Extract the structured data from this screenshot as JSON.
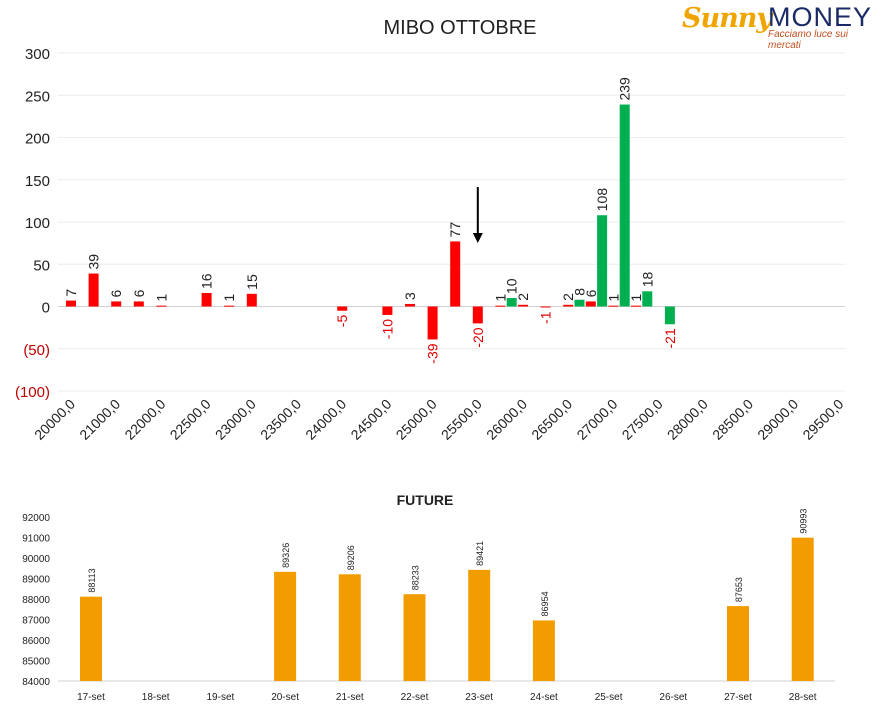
{
  "logo": {
    "word1": "Sunny",
    "word2": "MONEY",
    "tagline": "Facciamo luce sui mercati"
  },
  "chart_data": [
    {
      "type": "bar",
      "title": "MIBO OTTOBRE",
      "ylim": [
        -100,
        300
      ],
      "y_ticks": [
        {
          "value": 300,
          "label": "300"
        },
        {
          "value": 250,
          "label": "250"
        },
        {
          "value": 200,
          "label": "200"
        },
        {
          "value": 150,
          "label": "150"
        },
        {
          "value": 100,
          "label": "100"
        },
        {
          "value": 50,
          "label": "50"
        },
        {
          "value": 0,
          "label": "0"
        },
        {
          "value": -50,
          "label": "(50)"
        },
        {
          "value": -100,
          "label": "(100)"
        }
      ],
      "x_ticks": [
        "20000,0",
        "21000,0",
        "22000,0",
        "22500,0",
        "23000,0",
        "23500,0",
        "24000,0",
        "24500,0",
        "25000,0",
        "25500,0",
        "26000,0",
        "26500,0",
        "27000,0",
        "27500,0",
        "28000,0",
        "28500,0",
        "29000,0",
        "29500,0"
      ],
      "grid": true,
      "series": [
        {
          "color": "#ff0000",
          "points": [
            {
              "x": 0.0,
              "value": 7
            },
            {
              "x": 0.5,
              "value": 39
            },
            {
              "x": 1.0,
              "value": 6
            },
            {
              "x": 1.5,
              "value": 6
            },
            {
              "x": 2.0,
              "value": 1
            },
            {
              "x": 3.0,
              "value": 16
            },
            {
              "x": 3.5,
              "value": 1
            },
            {
              "x": 4.0,
              "value": 15
            },
            {
              "x": 6.0,
              "value": -5
            },
            {
              "x": 7.0,
              "value": -10
            },
            {
              "x": 7.5,
              "value": 3
            },
            {
              "x": 8.0,
              "value": -39
            },
            {
              "x": 8.5,
              "value": 77
            },
            {
              "x": 9.0,
              "value": -20
            },
            {
              "x": 9.5,
              "value": 1
            },
            {
              "x": 10.0,
              "value": 2
            },
            {
              "x": 10.5,
              "value": -1
            },
            {
              "x": 11.0,
              "value": 2
            },
            {
              "x": 11.5,
              "value": 6
            },
            {
              "x": 12.0,
              "value": 1
            },
            {
              "x": 12.5,
              "value": 1
            }
          ]
        },
        {
          "color": "#00b050",
          "points": [
            {
              "x": 9.75,
              "value": 10
            },
            {
              "x": 11.25,
              "value": 8
            },
            {
              "x": 11.75,
              "value": 108
            },
            {
              "x": 12.25,
              "value": 239
            },
            {
              "x": 12.75,
              "value": 18
            },
            {
              "x": 13.25,
              "value": -21
            }
          ]
        }
      ],
      "annotation": {
        "type": "arrow-down",
        "x": 9.0
      }
    },
    {
      "type": "bar",
      "title": "FUTURE",
      "ylim": [
        84000,
        92000
      ],
      "y_ticks": [
        84000,
        85000,
        86000,
        87000,
        88000,
        89000,
        90000,
        91000,
        92000
      ],
      "color": "#f39c00",
      "categories": [
        "17-set",
        "18-set",
        "19-set",
        "20-set",
        "21-set",
        "22-set",
        "23-set",
        "24-set",
        "25-set",
        "26-set",
        "27-set",
        "28-set"
      ],
      "values": [
        88113,
        null,
        null,
        89326,
        89206,
        88233,
        89421,
        86954,
        null,
        null,
        87653,
        90993
      ]
    }
  ]
}
